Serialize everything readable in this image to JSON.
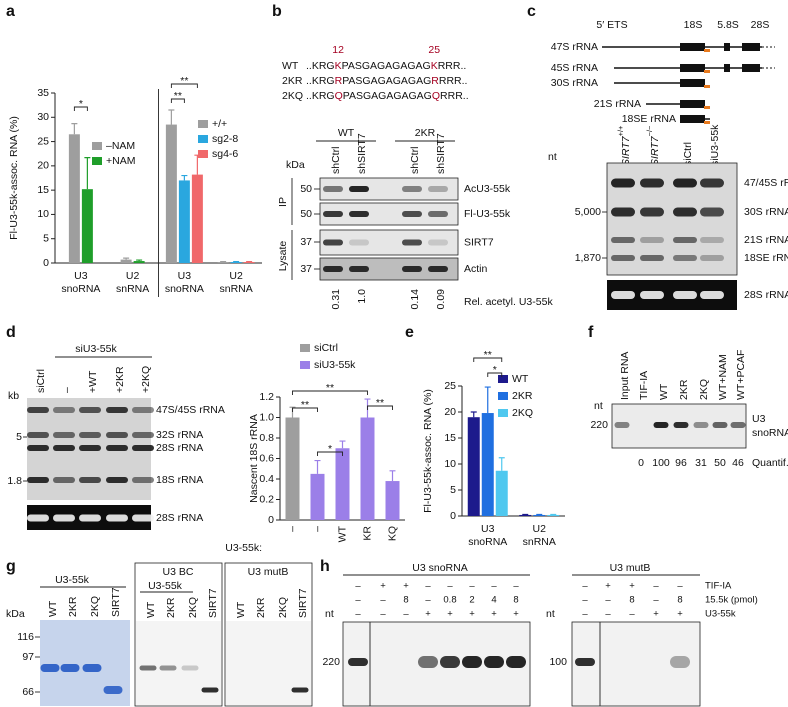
{
  "letters": [
    "a",
    "b",
    "c",
    "d",
    "e",
    "f",
    "g",
    "h"
  ],
  "chart_data": [
    {
      "type": "bar",
      "ylabel": "Fl-U3-55k-assoc. RNA (%)",
      "ylim": [
        0,
        35
      ],
      "yticks": [
        0,
        5,
        10,
        15,
        20,
        25,
        30,
        35
      ],
      "categories": [
        [
          "U3",
          "snoRNA"
        ],
        [
          "U2",
          "snRNA"
        ],
        [
          "U3",
          "snoRNA"
        ],
        [
          "U2",
          "snRNA"
        ]
      ],
      "series": [
        {
          "name": "–NAM",
          "color": "#9e9e9e",
          "values": [
            26.5,
            0.7,
            null,
            null
          ],
          "errors": [
            2.2,
            0.3,
            null,
            null
          ]
        },
        {
          "name": "+NAM",
          "color": "#1f9e2a",
          "values": [
            15.2,
            0.4,
            null,
            null
          ],
          "errors": [
            6.5,
            0.2,
            null,
            null
          ]
        },
        {
          "name": "+/+",
          "color": "#9e9e9e",
          "values": [
            null,
            null,
            28.5,
            0.2
          ],
          "errors": [
            null,
            null,
            3,
            0.1
          ]
        },
        {
          "name": "sg2-8",
          "color": "#2aa7df",
          "values": [
            null,
            null,
            17,
            0.2
          ],
          "errors": [
            null,
            null,
            1,
            0.1
          ]
        },
        {
          "name": "sg4-6",
          "color": "#f0686a",
          "values": [
            null,
            null,
            18.2,
            0.2
          ],
          "errors": [
            null,
            null,
            4,
            0.1
          ]
        }
      ],
      "annotations": [
        "*",
        "**",
        "**"
      ]
    },
    {
      "type": "bar",
      "ylabel": "Nascent 18S rRNA",
      "xlabel": "U3-55k:",
      "ylim": [
        0,
        1.2
      ],
      "yticks": [
        0,
        0.2,
        0.4,
        0.6,
        0.8,
        {
          "value": 1,
          "label": "1.0"
        },
        1.2
      ],
      "categories": [
        "–",
        "–",
        "WT",
        "KR",
        "KQ"
      ],
      "series": [
        {
          "name": "siCtrl",
          "color": "#9e9e9e",
          "values": [
            1,
            null,
            null,
            null,
            null
          ],
          "errors": [
            0.1,
            null,
            null,
            null,
            null
          ]
        },
        {
          "name": "siU3-55k",
          "color": "#9b7fe8",
          "values": [
            null,
            0.45,
            0.7,
            1,
            0.38
          ],
          "errors": [
            null,
            0.13,
            0.07,
            0.18,
            0.1
          ]
        }
      ],
      "annotations": [
        "**",
        "*",
        "**",
        "**"
      ]
    },
    {
      "type": "bar",
      "ylabel": "Fl-U3-55k-assoc. RNA (%)",
      "ylim": [
        0,
        25
      ],
      "yticks": [
        0,
        5,
        10,
        15,
        20,
        25
      ],
      "categories": [
        [
          "U3",
          "snoRNA"
        ],
        [
          "U2",
          "snRNA"
        ]
      ],
      "series": [
        {
          "name": "WT",
          "color": "#1d1a8c",
          "values": [
            19,
            0.2
          ],
          "errors": [
            1,
            0.1
          ]
        },
        {
          "name": "2KR",
          "color": "#1f6fe0",
          "values": [
            19.8,
            0.2
          ],
          "errors": [
            5,
            0.1
          ]
        },
        {
          "name": "2KQ",
          "color": "#4fc8ef",
          "values": [
            8.7,
            0.2
          ],
          "errors": [
            2.5,
            0.1
          ]
        }
      ],
      "annotations": [
        "**",
        "*"
      ]
    }
  ],
  "b": {
    "numbers": [
      "12",
      "25"
    ],
    "sequences": [
      {
        "label": "WT",
        "parts": [
          "..KRG",
          "K",
          "PASGAGAGAGAG",
          "K",
          "RRR.."
        ]
      },
      {
        "label": "2KR",
        "parts": [
          "..KRG",
          "R",
          "PASGAGAGAGAG",
          "R",
          "RRR.."
        ]
      },
      {
        "label": "2KQ",
        "parts": [
          "..KRG",
          "Q",
          "PASGAGAGAGAG",
          "Q",
          "RRR.."
        ]
      }
    ],
    "groups": [
      "WT",
      "2KR"
    ],
    "lanes": [
      "shCtrl",
      "shSIRT7",
      "shCtrl",
      "shSIRT7"
    ],
    "unit": "kDa",
    "markers": [
      "50",
      "50",
      "37",
      "37"
    ],
    "sections": [
      "IP",
      "Lysate"
    ],
    "rows": [
      "AcU3-55k",
      "Fl-U3-55k",
      "SIRT7",
      "Actin"
    ],
    "quant": [
      "0.31",
      "1.0",
      "0.14",
      "0.09"
    ],
    "quant_label": "Rel. acetyl. U3-55k"
  },
  "c": {
    "diagram_labels": [
      "5′ ETS",
      "18S",
      "5.8S",
      "28S"
    ],
    "precursors": [
      "47S rRNA",
      "45S rRNA",
      "30S rRNA",
      "21S rRNA",
      "18SE rRNA"
    ],
    "lanes": [
      [
        "SIRT7",
        "+/+"
      ],
      [
        "SIRT7",
        "−/−"
      ],
      [
        "siCtrl"
      ],
      [
        "siU3-55k"
      ]
    ],
    "unit": "nt",
    "markers": [
      "5,000",
      "1,870"
    ],
    "bands": [
      "47/45S rRNA",
      "30S rRNA",
      "21S rRNA",
      "18SE rRNA"
    ],
    "loading": "28S rRNA"
  },
  "d_gel": {
    "header": "siU3-55k",
    "lanes": [
      "siCtrl",
      "–",
      "+WT",
      "+2KR",
      "+2KQ"
    ],
    "unit": "kb",
    "markers": [
      "5",
      "1.8"
    ],
    "bands": [
      "47S/45S rRNA",
      "32S rRNA",
      "28S rRNA",
      "18S rRNA"
    ],
    "loading": "28S rRNA"
  },
  "f": {
    "lanes": [
      "Input RNA",
      "TIF-IA",
      "WT",
      "2KR",
      "2KQ",
      "WT+NAM",
      "WT+PCAF"
    ],
    "unit": "nt",
    "marker": "220",
    "band": [
      "U3",
      "snoRNA"
    ],
    "quant": [
      "0",
      "100",
      "96",
      "31",
      "50",
      "46"
    ],
    "quant_label": "Quantif."
  },
  "g": {
    "header": "U3-55k",
    "unit": "kDa",
    "lanes": [
      "WT",
      "2KR",
      "2KQ",
      "SIRT7"
    ],
    "markers": [
      "116",
      "97",
      "66"
    ],
    "panels": [
      {
        "title": "U3 BC",
        "header": "U3-55k",
        "lanes": [
          "WT",
          "2KR",
          "2KQ",
          "SIRT7"
        ]
      },
      {
        "title": "U3 mutB",
        "lanes": [
          "WT",
          "2KR",
          "2KQ",
          "SIRT7"
        ]
      }
    ]
  },
  "h": {
    "panels": [
      {
        "title": "U3 snoRNA",
        "rows": [
          [
            "–",
            "+",
            "+",
            "–",
            "–",
            "–",
            "–",
            "–"
          ],
          [
            "–",
            "–",
            "8",
            "–",
            "0.8",
            "2",
            "4",
            "8"
          ],
          [
            "–",
            "–",
            "–",
            "+",
            "+",
            "+",
            "+",
            "+"
          ]
        ],
        "unit": "nt",
        "marker": "220"
      },
      {
        "title": "U3 mutB",
        "rows": [
          [
            "–",
            "+",
            "+",
            "–",
            "–"
          ],
          [
            "–",
            "–",
            "8",
            "–",
            "8"
          ],
          [
            "–",
            "–",
            "–",
            "+",
            "+"
          ]
        ],
        "unit": "nt",
        "marker": "100"
      }
    ],
    "row_labels": [
      "TIF-IA",
      "15.5k (pmol)",
      "U3-55k"
    ]
  }
}
